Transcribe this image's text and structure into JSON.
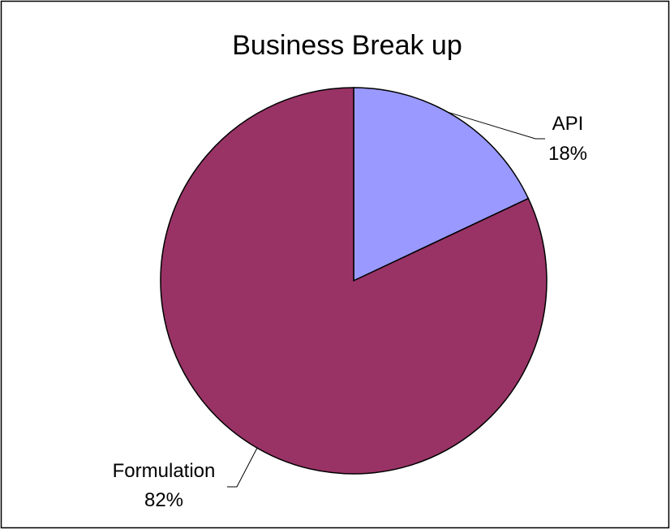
{
  "chart_data": {
    "type": "pie",
    "title": "Business Break up",
    "slices": [
      {
        "label": "API",
        "value": 18,
        "value_label": "18%",
        "color": "#9999ff"
      },
      {
        "label": "Formulation",
        "value": 82,
        "value_label": "82%",
        "color": "#993366"
      }
    ],
    "legend": "none",
    "label_style": "outside with leader lines"
  }
}
